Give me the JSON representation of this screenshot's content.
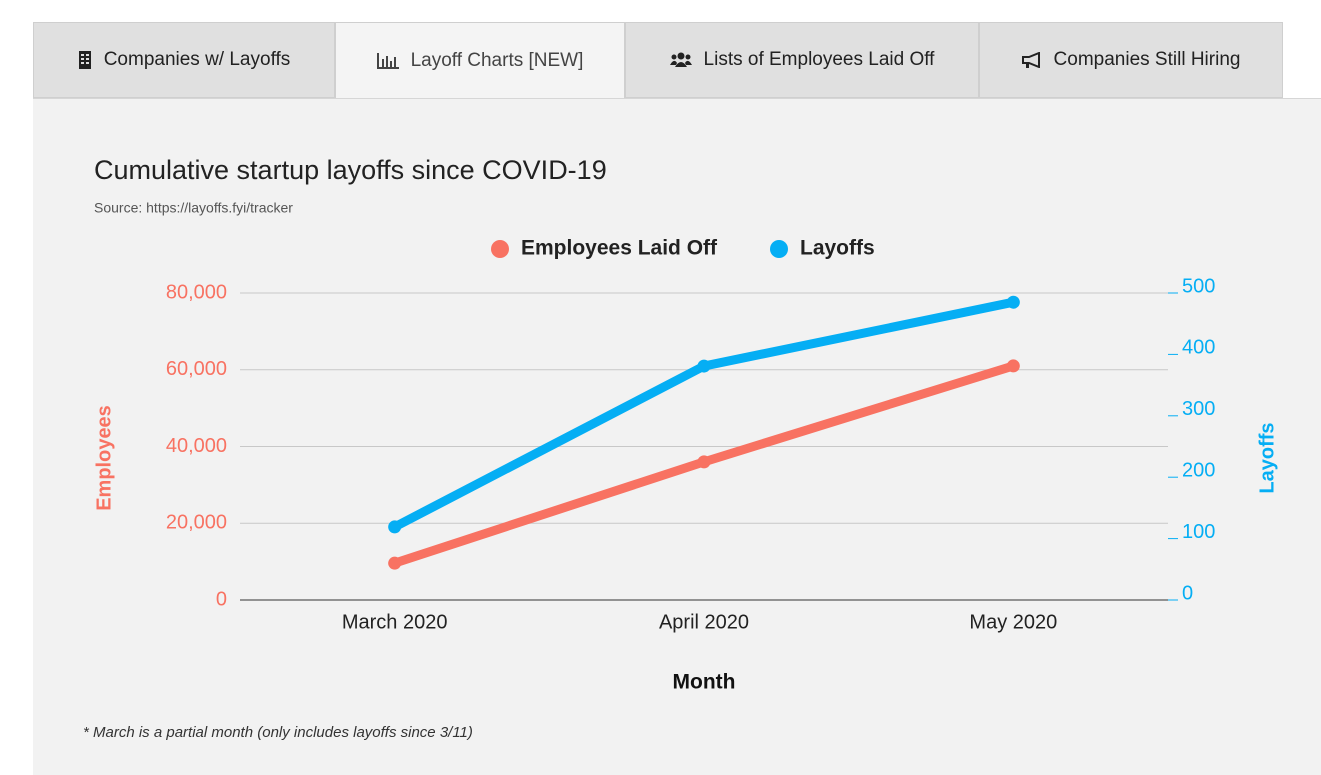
{
  "tabs": [
    "Companies w/ Layoffs",
    "Layoff Charts [NEW]",
    "Lists of Employees Laid Off",
    "Companies Still Hiring"
  ],
  "chart_data": {
    "type": "line",
    "title": "Cumulative startup layoffs since COVID-19",
    "subtitle": "Source: https://layoffs.fyi/tracker",
    "categories": [
      "March 2020",
      "April 2020",
      "May 2020"
    ],
    "series": [
      {
        "name": "Employees Laid Off",
        "color": "#f87262",
        "values": [
          9600,
          36000,
          61000
        ]
      },
      {
        "name": "Layoffs",
        "color": "#05aef4",
        "values": [
          119,
          381,
          485
        ],
        "axis": "y2"
      }
    ],
    "x_label": "Month",
    "y_label": "Employees",
    "y2_label": "Layoffs",
    "ylim": [
      0,
      80000
    ],
    "yticks": [
      0,
      {
        "value": 20000,
        "label": "20,000"
      },
      {
        "value": 40000,
        "label": "40,000"
      },
      {
        "value": 60000,
        "label": "60,000"
      },
      {
        "value": 80000,
        "label": "80,000"
      }
    ],
    "y2lim": [
      0,
      500
    ],
    "y2ticks": [
      0,
      100,
      200,
      300,
      400,
      500
    ],
    "grid": true,
    "legend": "top",
    "note": "* March is a partial month (only includes layoffs since 3/11)"
  }
}
